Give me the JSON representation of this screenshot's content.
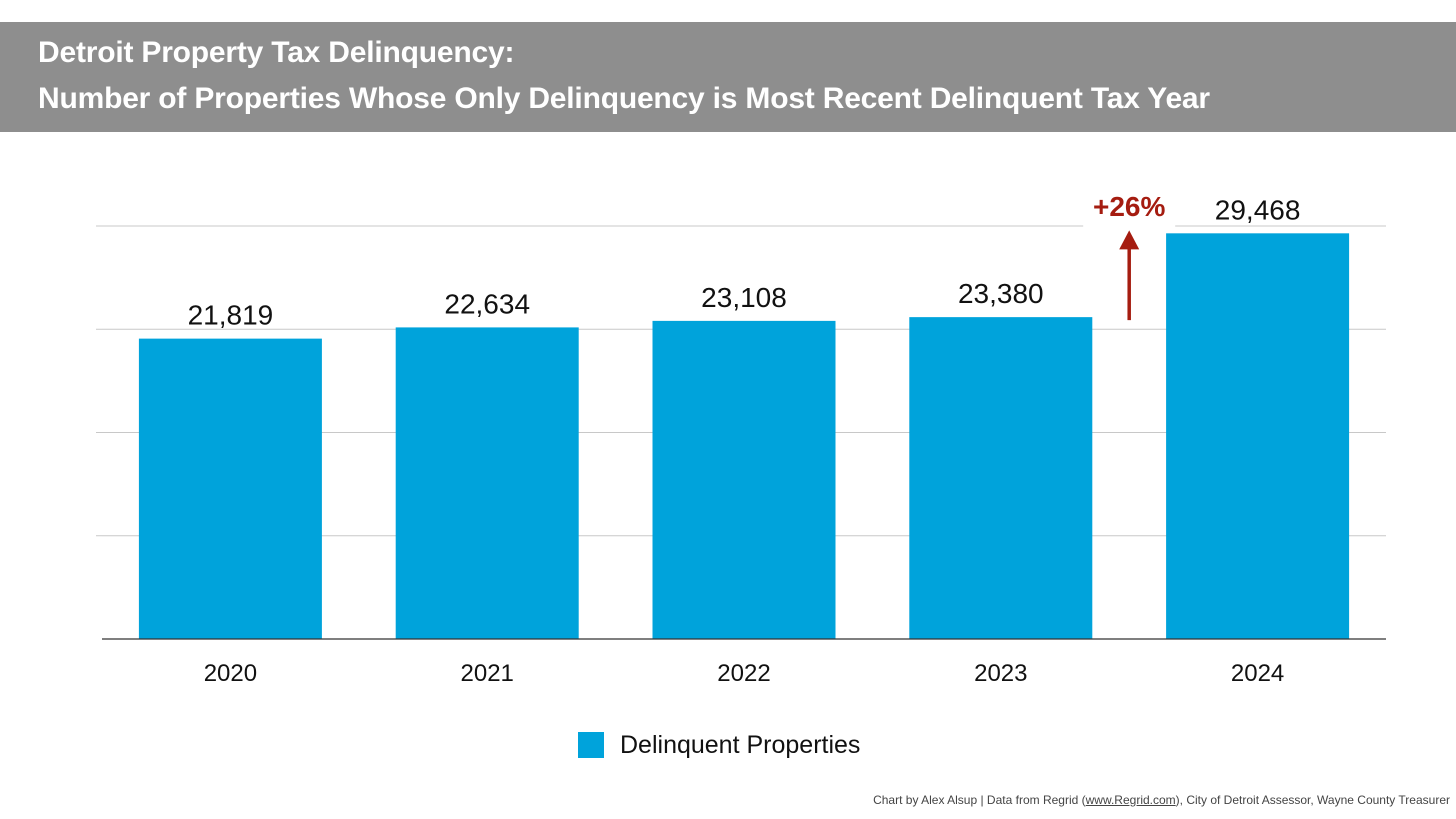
{
  "title": {
    "line1": "Detroit Property Tax Delinquency:",
    "line2": "Number of Properties Whose Only Delinquency is Most Recent Delinquent Tax Year"
  },
  "colors": {
    "banner": "#8e8e8e",
    "bar": "#00a3db",
    "annotation": "#a51c10",
    "grid": "#c8c8c8",
    "axis": "#333333"
  },
  "chart_data": {
    "type": "bar",
    "categories": [
      "2020",
      "2021",
      "2022",
      "2023",
      "2024"
    ],
    "series": [
      {
        "name": "Delinquent Properties",
        "values": [
          21819,
          22634,
          23108,
          23380,
          29468
        ]
      }
    ],
    "data_labels": [
      "21,819",
      "22,634",
      "23,108",
      "23,380",
      "29,468"
    ],
    "ylim": [
      0,
      30000
    ],
    "y_gridlines": [
      7500,
      15000,
      22500,
      30000
    ],
    "grid": true,
    "y_tick_labels_visible": false,
    "legend_position": "bottom-center",
    "annotation": {
      "text": "+26%",
      "category": "2024",
      "arrow_from": 23380,
      "arrow_to": 29468
    }
  },
  "legend": {
    "label": "Delinquent Properties"
  },
  "footer": {
    "prefix": "Chart by Alex Alsup | Data from Regrid (",
    "link": "www.Regrid.com",
    "suffix": "), City of Detroit Assessor, Wayne County Treasurer"
  }
}
